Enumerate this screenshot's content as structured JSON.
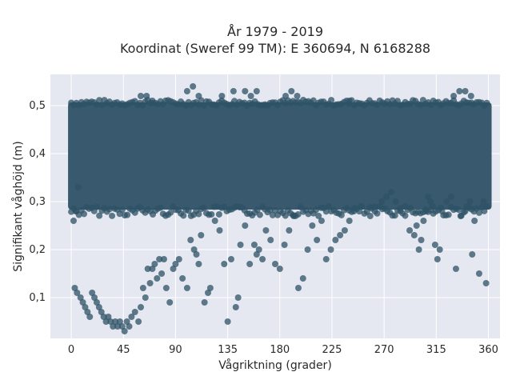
{
  "chart_data": {
    "type": "scatter",
    "title": "År 1979 - 2019",
    "subtitle": "Koordinat (Sweref 99 TM): E 360694, N 6168288",
    "xlabel": "Vågriktning (grader)",
    "ylabel": "Signifikant våghöjd (m)",
    "xlim": [
      -18,
      370
    ],
    "ylim": [
      0.015,
      0.565
    ],
    "xticks": [
      0,
      45,
      90,
      135,
      180,
      225,
      270,
      315,
      360
    ],
    "xtick_labels": [
      "0",
      "45",
      "90",
      "135",
      "180",
      "225",
      "270",
      "315",
      "360"
    ],
    "yticks": [
      0.1,
      0.2,
      0.3,
      0.4,
      0.5
    ],
    "ytick_labels": [
      "0,1",
      "0,2",
      "0,3",
      "0,4",
      "0,5"
    ],
    "grid": true,
    "legend": "none",
    "series": [
      {
        "color": "#2e5166",
        "band": {
          "x_range": [
            0,
            360
          ],
          "y_range": [
            0.29,
            0.5
          ],
          "description_values": "dense cloud"
        },
        "points": [
          [
            3,
            0.12
          ],
          [
            5,
            0.11
          ],
          [
            8,
            0.1
          ],
          [
            10,
            0.09
          ],
          [
            12,
            0.08
          ],
          [
            14,
            0.07
          ],
          [
            16,
            0.06
          ],
          [
            18,
            0.11
          ],
          [
            20,
            0.1
          ],
          [
            22,
            0.09
          ],
          [
            24,
            0.08
          ],
          [
            26,
            0.07
          ],
          [
            28,
            0.06
          ],
          [
            30,
            0.05
          ],
          [
            32,
            0.06
          ],
          [
            34,
            0.05
          ],
          [
            36,
            0.04
          ],
          [
            38,
            0.05
          ],
          [
            40,
            0.04
          ],
          [
            42,
            0.05
          ],
          [
            44,
            0.04
          ],
          [
            46,
            0.03
          ],
          [
            48,
            0.05
          ],
          [
            50,
            0.04
          ],
          [
            52,
            0.06
          ],
          [
            55,
            0.07
          ],
          [
            58,
            0.05
          ],
          [
            60,
            0.08
          ],
          [
            62,
            0.12
          ],
          [
            64,
            0.1
          ],
          [
            66,
            0.16
          ],
          [
            68,
            0.13
          ],
          [
            70,
            0.16
          ],
          [
            72,
            0.17
          ],
          [
            74,
            0.14
          ],
          [
            76,
            0.18
          ],
          [
            78,
            0.15
          ],
          [
            80,
            0.18
          ],
          [
            82,
            0.12
          ],
          [
            85,
            0.09
          ],
          [
            88,
            0.16
          ],
          [
            90,
            0.17
          ],
          [
            93,
            0.18
          ],
          [
            96,
            0.14
          ],
          [
            100,
            0.12
          ],
          [
            103,
            0.22
          ],
          [
            106,
            0.2
          ],
          [
            108,
            0.19
          ],
          [
            110,
            0.17
          ],
          [
            112,
            0.23
          ],
          [
            115,
            0.09
          ],
          [
            118,
            0.11
          ],
          [
            120,
            0.12
          ],
          [
            124,
            0.26
          ],
          [
            128,
            0.24
          ],
          [
            132,
            0.17
          ],
          [
            135,
            0.05
          ],
          [
            138,
            0.18
          ],
          [
            142,
            0.08
          ],
          [
            144,
            0.1
          ],
          [
            146,
            0.21
          ],
          [
            150,
            0.25
          ],
          [
            154,
            0.17
          ],
          [
            158,
            0.21
          ],
          [
            160,
            0.19
          ],
          [
            162,
            0.2
          ],
          [
            165,
            0.18
          ],
          [
            168,
            0.24
          ],
          [
            172,
            0.22
          ],
          [
            176,
            0.17
          ],
          [
            180,
            0.16
          ],
          [
            184,
            0.21
          ],
          [
            188,
            0.24
          ],
          [
            192,
            0.27
          ],
          [
            196,
            0.12
          ],
          [
            200,
            0.14
          ],
          [
            204,
            0.2
          ],
          [
            208,
            0.25
          ],
          [
            212,
            0.22
          ],
          [
            216,
            0.26
          ],
          [
            220,
            0.18
          ],
          [
            224,
            0.2
          ],
          [
            228,
            0.22
          ],
          [
            232,
            0.23
          ],
          [
            236,
            0.24
          ],
          [
            240,
            0.26
          ],
          [
            244,
            0.28
          ],
          [
            250,
            0.29
          ],
          [
            258,
            0.27
          ],
          [
            262,
            0.28
          ],
          [
            268,
            0.3
          ],
          [
            272,
            0.31
          ],
          [
            276,
            0.32
          ],
          [
            280,
            0.3
          ],
          [
            284,
            0.28
          ],
          [
            288,
            0.29
          ],
          [
            292,
            0.24
          ],
          [
            296,
            0.23
          ],
          [
            298,
            0.25
          ],
          [
            300,
            0.2
          ],
          [
            302,
            0.22
          ],
          [
            304,
            0.26
          ],
          [
            306,
            0.28
          ],
          [
            308,
            0.31
          ],
          [
            310,
            0.3
          ],
          [
            312,
            0.29
          ],
          [
            314,
            0.21
          ],
          [
            316,
            0.18
          ],
          [
            318,
            0.2
          ],
          [
            320,
            0.28
          ],
          [
            324,
            0.3
          ],
          [
            328,
            0.31
          ],
          [
            332,
            0.16
          ],
          [
            336,
            0.27
          ],
          [
            340,
            0.28
          ],
          [
            344,
            0.3
          ],
          [
            346,
            0.19
          ],
          [
            348,
            0.26
          ],
          [
            352,
            0.15
          ],
          [
            356,
            0.3
          ],
          [
            358,
            0.13
          ],
          [
            2,
            0.26
          ],
          [
            4,
            0.28
          ],
          [
            6,
            0.33
          ],
          [
            60,
            0.52
          ],
          [
            65,
            0.52
          ],
          [
            70,
            0.51
          ],
          [
            100,
            0.53
          ],
          [
            105,
            0.54
          ],
          [
            110,
            0.52
          ],
          [
            130,
            0.52
          ],
          [
            140,
            0.53
          ],
          [
            150,
            0.53
          ],
          [
            155,
            0.52
          ],
          [
            160,
            0.53
          ],
          [
            185,
            0.52
          ],
          [
            190,
            0.53
          ],
          [
            195,
            0.52
          ],
          [
            240,
            0.51
          ],
          [
            330,
            0.52
          ],
          [
            335,
            0.53
          ],
          [
            340,
            0.53
          ],
          [
            345,
            0.52
          ]
        ]
      }
    ]
  }
}
